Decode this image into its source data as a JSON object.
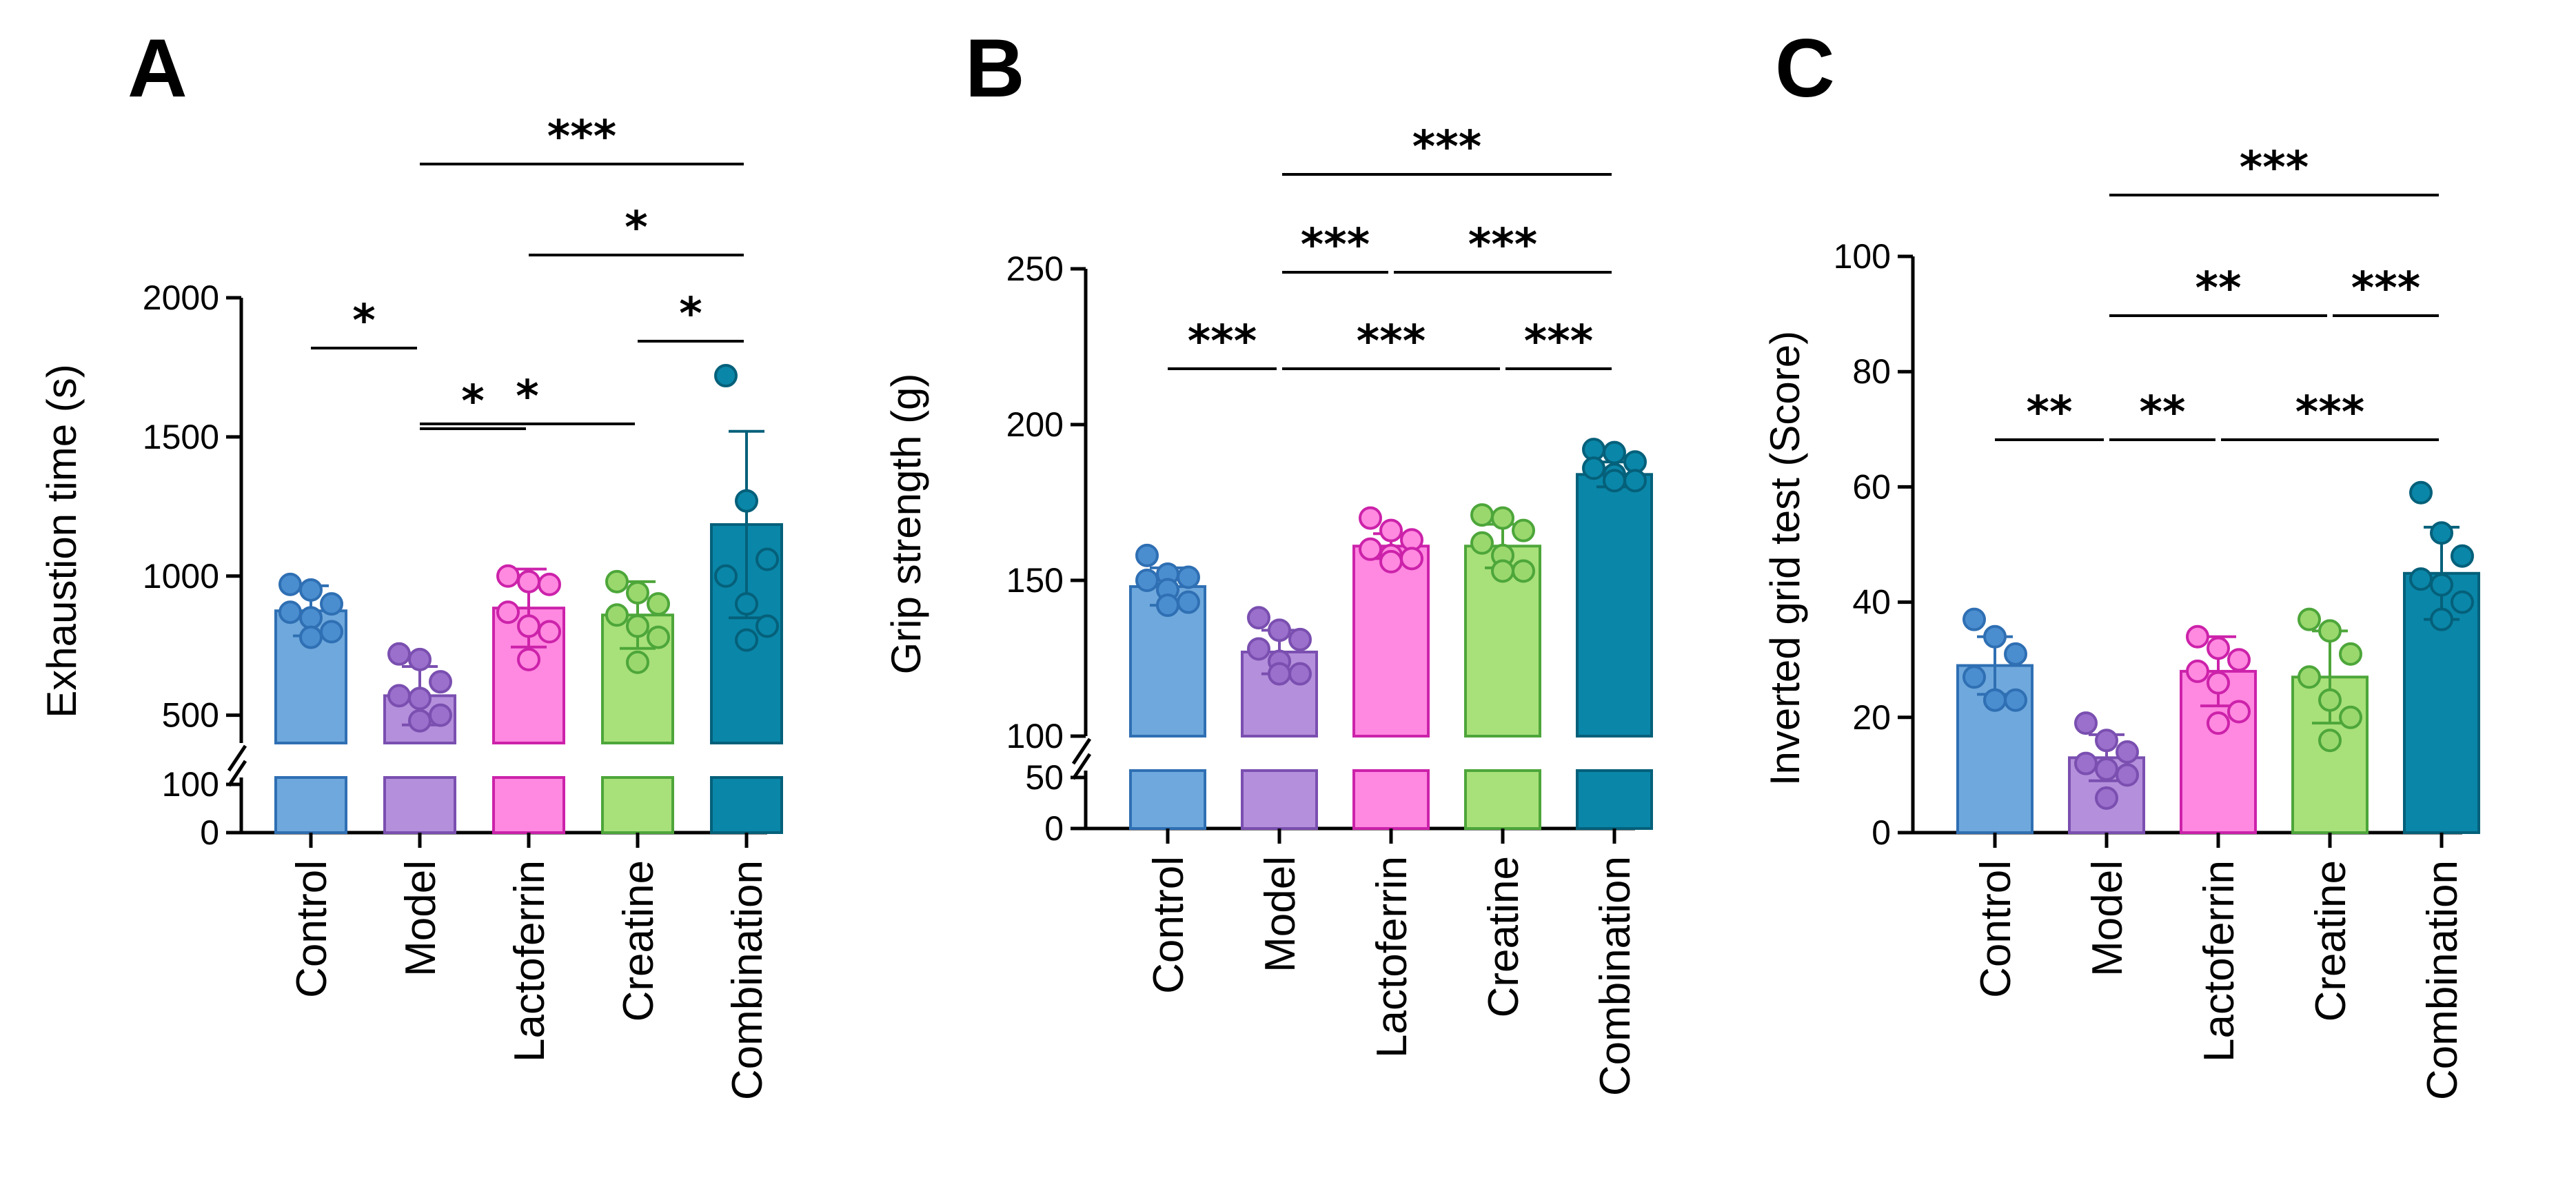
{
  "categories": [
    "Control",
    "Model",
    "Lactoferrin",
    "Creatine",
    "Combination"
  ],
  "colors": {
    "Control": {
      "fill": "#6fa8dc",
      "stroke": "#2f6fb3",
      "dot": "#4a8ed0"
    },
    "Model": {
      "fill": "#b48fdb",
      "stroke": "#7a4fb0",
      "dot": "#9a70cc"
    },
    "Lactoferrin": {
      "fill": "#ff88e0",
      "stroke": "#cc22aa",
      "dot": "#ff8ae0"
    },
    "Creatine": {
      "fill": "#a8e07a",
      "stroke": "#4da63a",
      "dot": "#9ad86e"
    },
    "Combination": {
      "fill": "#0a86a8",
      "stroke": "#05607a",
      "dot": "#0a86a8"
    }
  },
  "chart_data": [
    {
      "type": "bar",
      "panel": "A",
      "ylabel": "Exhaustion time (s)",
      "ylim": [
        0,
        2000
      ],
      "axis_break": [
        100,
        400
      ],
      "yticks": [
        0,
        100,
        500,
        1000,
        1500,
        2000
      ],
      "categories": [
        "Control",
        "Model",
        "Lactoferrin",
        "Creatine",
        "Combination"
      ],
      "values": [
        875,
        570,
        885,
        860,
        1185
      ],
      "sd": [
        90,
        105,
        140,
        120,
        335
      ],
      "points": [
        [
          970,
          950,
          900,
          870,
          850,
          800,
          780
        ],
        [
          720,
          700,
          620,
          570,
          560,
          500,
          480
        ],
        [
          1000,
          980,
          970,
          870,
          820,
          800,
          700
        ],
        [
          980,
          940,
          900,
          860,
          820,
          780,
          690
        ],
        [
          1720,
          1270,
          1060,
          1000,
          900,
          820,
          770
        ]
      ],
      "significance": [
        {
          "from": "Control",
          "to": "Model",
          "label": "*"
        },
        {
          "from": "Model",
          "to": "Lactoferrin",
          "label": "*"
        },
        {
          "from": "Model",
          "to": "Creatine",
          "label": "*"
        },
        {
          "from": "Creatine",
          "to": "Combination",
          "label": "*"
        },
        {
          "from": "Lactoferrin",
          "to": "Combination",
          "label": "*"
        },
        {
          "from": "Model",
          "to": "Combination",
          "label": "***"
        }
      ]
    },
    {
      "type": "bar",
      "panel": "B",
      "ylabel": "Grip strength (g)",
      "ylim": [
        0,
        250
      ],
      "axis_break": [
        50,
        100
      ],
      "yticks": [
        0,
        50,
        100,
        150,
        200,
        250
      ],
      "categories": [
        "Control",
        "Model",
        "Lactoferrin",
        "Creatine",
        "Combination"
      ],
      "values": [
        148,
        127,
        161,
        161,
        184
      ],
      "sd": [
        6,
        7,
        4,
        7,
        4
      ],
      "points": [
        [
          158,
          152,
          151,
          150,
          147,
          143,
          142
        ],
        [
          138,
          134,
          131,
          128,
          124,
          120,
          120
        ],
        [
          170,
          166,
          163,
          160,
          158,
          157,
          156
        ],
        [
          171,
          170,
          166,
          162,
          158,
          153,
          153
        ],
        [
          192,
          191,
          188,
          186,
          184,
          182,
          182
        ]
      ],
      "significance": [
        {
          "from": "Control",
          "to": "Model",
          "label": "***"
        },
        {
          "from": "Model",
          "to": "Creatine",
          "label": "***"
        },
        {
          "from": "Creatine",
          "to": "Combination",
          "label": "***"
        },
        {
          "from": "Model",
          "to": "Lactoferrin",
          "label": "***"
        },
        {
          "from": "Lactoferrin",
          "to": "Combination",
          "label": "***"
        },
        {
          "from": "Model",
          "to": "Combination",
          "label": "***"
        }
      ]
    },
    {
      "type": "bar",
      "panel": "C",
      "ylabel": "Inverted grid test (Score)",
      "ylim": [
        0,
        100
      ],
      "yticks": [
        0,
        20,
        40,
        60,
        80,
        100
      ],
      "categories": [
        "Control",
        "Model",
        "Lactoferrin",
        "Creatine",
        "Combination"
      ],
      "values": [
        29,
        13,
        28,
        27,
        45
      ],
      "sd": [
        5,
        4,
        6,
        8,
        8
      ],
      "points": [
        [
          37,
          34,
          31,
          27,
          23,
          23,
          23
        ],
        [
          19,
          16,
          14,
          12,
          11,
          10,
          6
        ],
        [
          34,
          32,
          30,
          28,
          26,
          21,
          19
        ],
        [
          37,
          35,
          31,
          27,
          23,
          20,
          16
        ],
        [
          59,
          52,
          48,
          44,
          43,
          40,
          37
        ]
      ],
      "significance": [
        {
          "from": "Control",
          "to": "Model",
          "label": "**"
        },
        {
          "from": "Model",
          "to": "Lactoferrin",
          "label": "**"
        },
        {
          "from": "Lactoferrin",
          "to": "Combination",
          "label": "***"
        },
        {
          "from": "Model",
          "to": "Creatine",
          "label": "**"
        },
        {
          "from": "Creatine",
          "to": "Combination",
          "label": "***"
        },
        {
          "from": "Model",
          "to": "Combination",
          "label": "***"
        }
      ]
    }
  ]
}
